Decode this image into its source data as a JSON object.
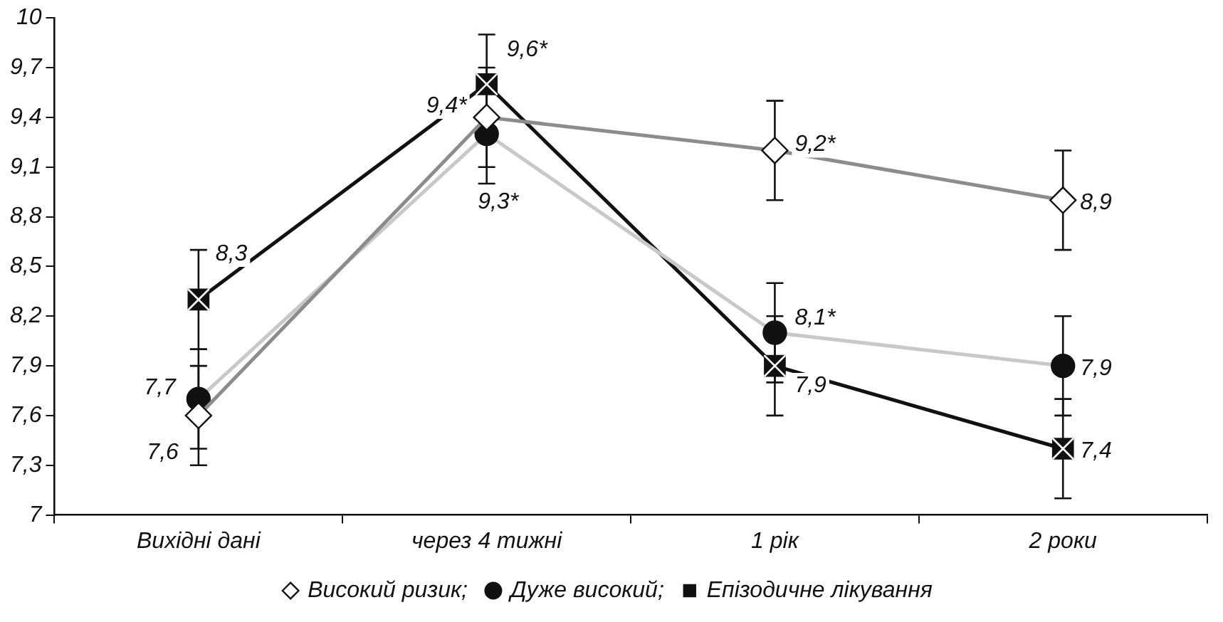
{
  "chart_data": {
    "type": "line",
    "categories": [
      "Вихідні дані",
      "через 4 тижні",
      "1 рік",
      "2 роки"
    ],
    "ylim": [
      7,
      10
    ],
    "yticks": [
      7,
      {
        "value": 7.3,
        "label": "7,3"
      },
      {
        "value": 7.6,
        "label": "7,6"
      },
      {
        "value": 7.9,
        "label": "7,9"
      },
      {
        "value": 8.2,
        "label": "8,2"
      },
      {
        "value": 8.5,
        "label": "8,5"
      },
      {
        "value": 8.8,
        "label": "8,8"
      },
      {
        "value": 9.1,
        "label": "9,1"
      },
      {
        "value": 9.4,
        "label": "9,4"
      },
      {
        "value": 9.7,
        "label": "9,7"
      },
      10
    ],
    "grid": false,
    "legend": "bottom",
    "series": [
      {
        "name": "Високий ризик;",
        "color": "#8c8c8c",
        "marker": "diamond",
        "values": [
          7.6,
          9.4,
          9.2,
          8.9
        ],
        "errors": [
          0.3,
          0.3,
          0.3,
          0.3
        ],
        "value_labels": [
          "7,6",
          "9,4*",
          "9,2*",
          "8,9"
        ]
      },
      {
        "name": "Дуже високий;",
        "color": "#c8c8c8",
        "marker": "circle",
        "values": [
          7.7,
          9.3,
          8.1,
          7.9
        ],
        "errors": [
          0.3,
          0.3,
          0.3,
          0.3
        ],
        "value_labels": [
          "7,7",
          "9,3*",
          "8,1*",
          "7,9"
        ]
      },
      {
        "name": "Епізодичне лікування",
        "color": "#111111",
        "marker": "square",
        "values": [
          8.3,
          9.6,
          7.9,
          7.4
        ],
        "errors": [
          0.3,
          0.3,
          0.3,
          0.3
        ],
        "value_labels": [
          "8,3",
          "9,6*",
          "7,9",
          "7,4"
        ]
      }
    ]
  }
}
